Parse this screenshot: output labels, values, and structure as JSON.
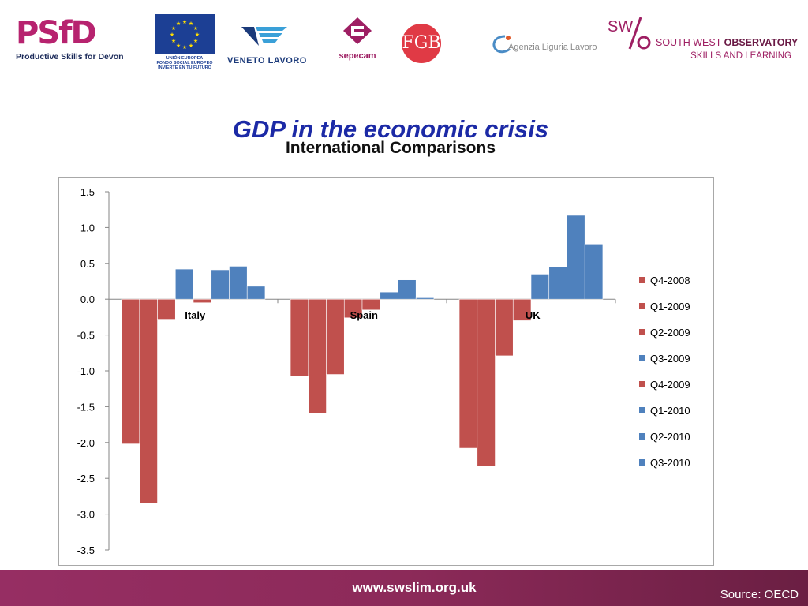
{
  "logos": {
    "psfd_mark": "PSfD",
    "psfd_caption": "Productive Skills for Devon",
    "eu_caption": [
      "UNIÓN EUROPEA",
      "FONDO SOCIAL EUROPEO",
      "INVIERTE EN TU FUTURO"
    ],
    "veneto": "VENETO LAVORO",
    "sepecam": "sepecam",
    "fgb": "FGB",
    "liguria": "Agenzia Liguria Lavoro",
    "sw_line1_a": "SOUTH WEST ",
    "sw_line1_b": "OBSERVATORY",
    "sw_line2": "SKILLS AND LEARNING"
  },
  "header": {
    "title": "GDP in the economic crisis",
    "subtitle": "International Comparisons"
  },
  "footer": {
    "url": "www.swslim.org.uk",
    "source": "Source: OECD"
  },
  "chart_data": {
    "type": "bar",
    "categories": [
      "Italy",
      "Spain",
      "UK"
    ],
    "series": [
      {
        "name": "Q4-2008",
        "values": [
          -2.02,
          -1.07,
          -2.08
        ]
      },
      {
        "name": "Q1-2009",
        "values": [
          -2.85,
          -1.59,
          -2.33
        ]
      },
      {
        "name": "Q2-2009",
        "values": [
          -0.28,
          -1.05,
          -0.79
        ]
      },
      {
        "name": "Q3-2009",
        "values": [
          0.42,
          -0.26,
          -0.3
        ]
      },
      {
        "name": "Q4-2009",
        "values": [
          -0.05,
          -0.15,
          0.35
        ]
      },
      {
        "name": "Q1-2010",
        "values": [
          0.41,
          0.1,
          0.45
        ]
      },
      {
        "name": "Q2-2010",
        "values": [
          0.46,
          0.27,
          1.17
        ]
      },
      {
        "name": "Q3-2010",
        "values": [
          0.18,
          0.02,
          0.77
        ]
      }
    ],
    "bar_colors_by_position": [
      [
        "#c0504d",
        "#c0504d",
        "#c0504d",
        "#4f81bd",
        "#c0504d",
        "#4f81bd",
        "#4f81bd",
        "#4f81bd"
      ],
      [
        "#c0504d",
        "#c0504d",
        "#c0504d",
        "#c0504d",
        "#c0504d",
        "#4f81bd",
        "#4f81bd",
        "#4f81bd"
      ],
      [
        "#c0504d",
        "#c0504d",
        "#c0504d",
        "#c0504d",
        "#4f81bd",
        "#4f81bd",
        "#4f81bd",
        "#4f81bd"
      ]
    ],
    "legend_colors": [
      "#c0504d",
      "#c0504d",
      "#c0504d",
      "#4f81bd",
      "#c0504d",
      "#4f81bd",
      "#4f81bd",
      "#4f81bd"
    ],
    "yticks": [
      "1.5",
      "1.0",
      "0.5",
      "0.0",
      "-0.5",
      "-1.0",
      "-1.5",
      "-2.0",
      "-2.5",
      "-3.0",
      "-3.5"
    ],
    "ylim": [
      -3.5,
      1.5
    ],
    "grid": false,
    "legend_position": "right"
  }
}
